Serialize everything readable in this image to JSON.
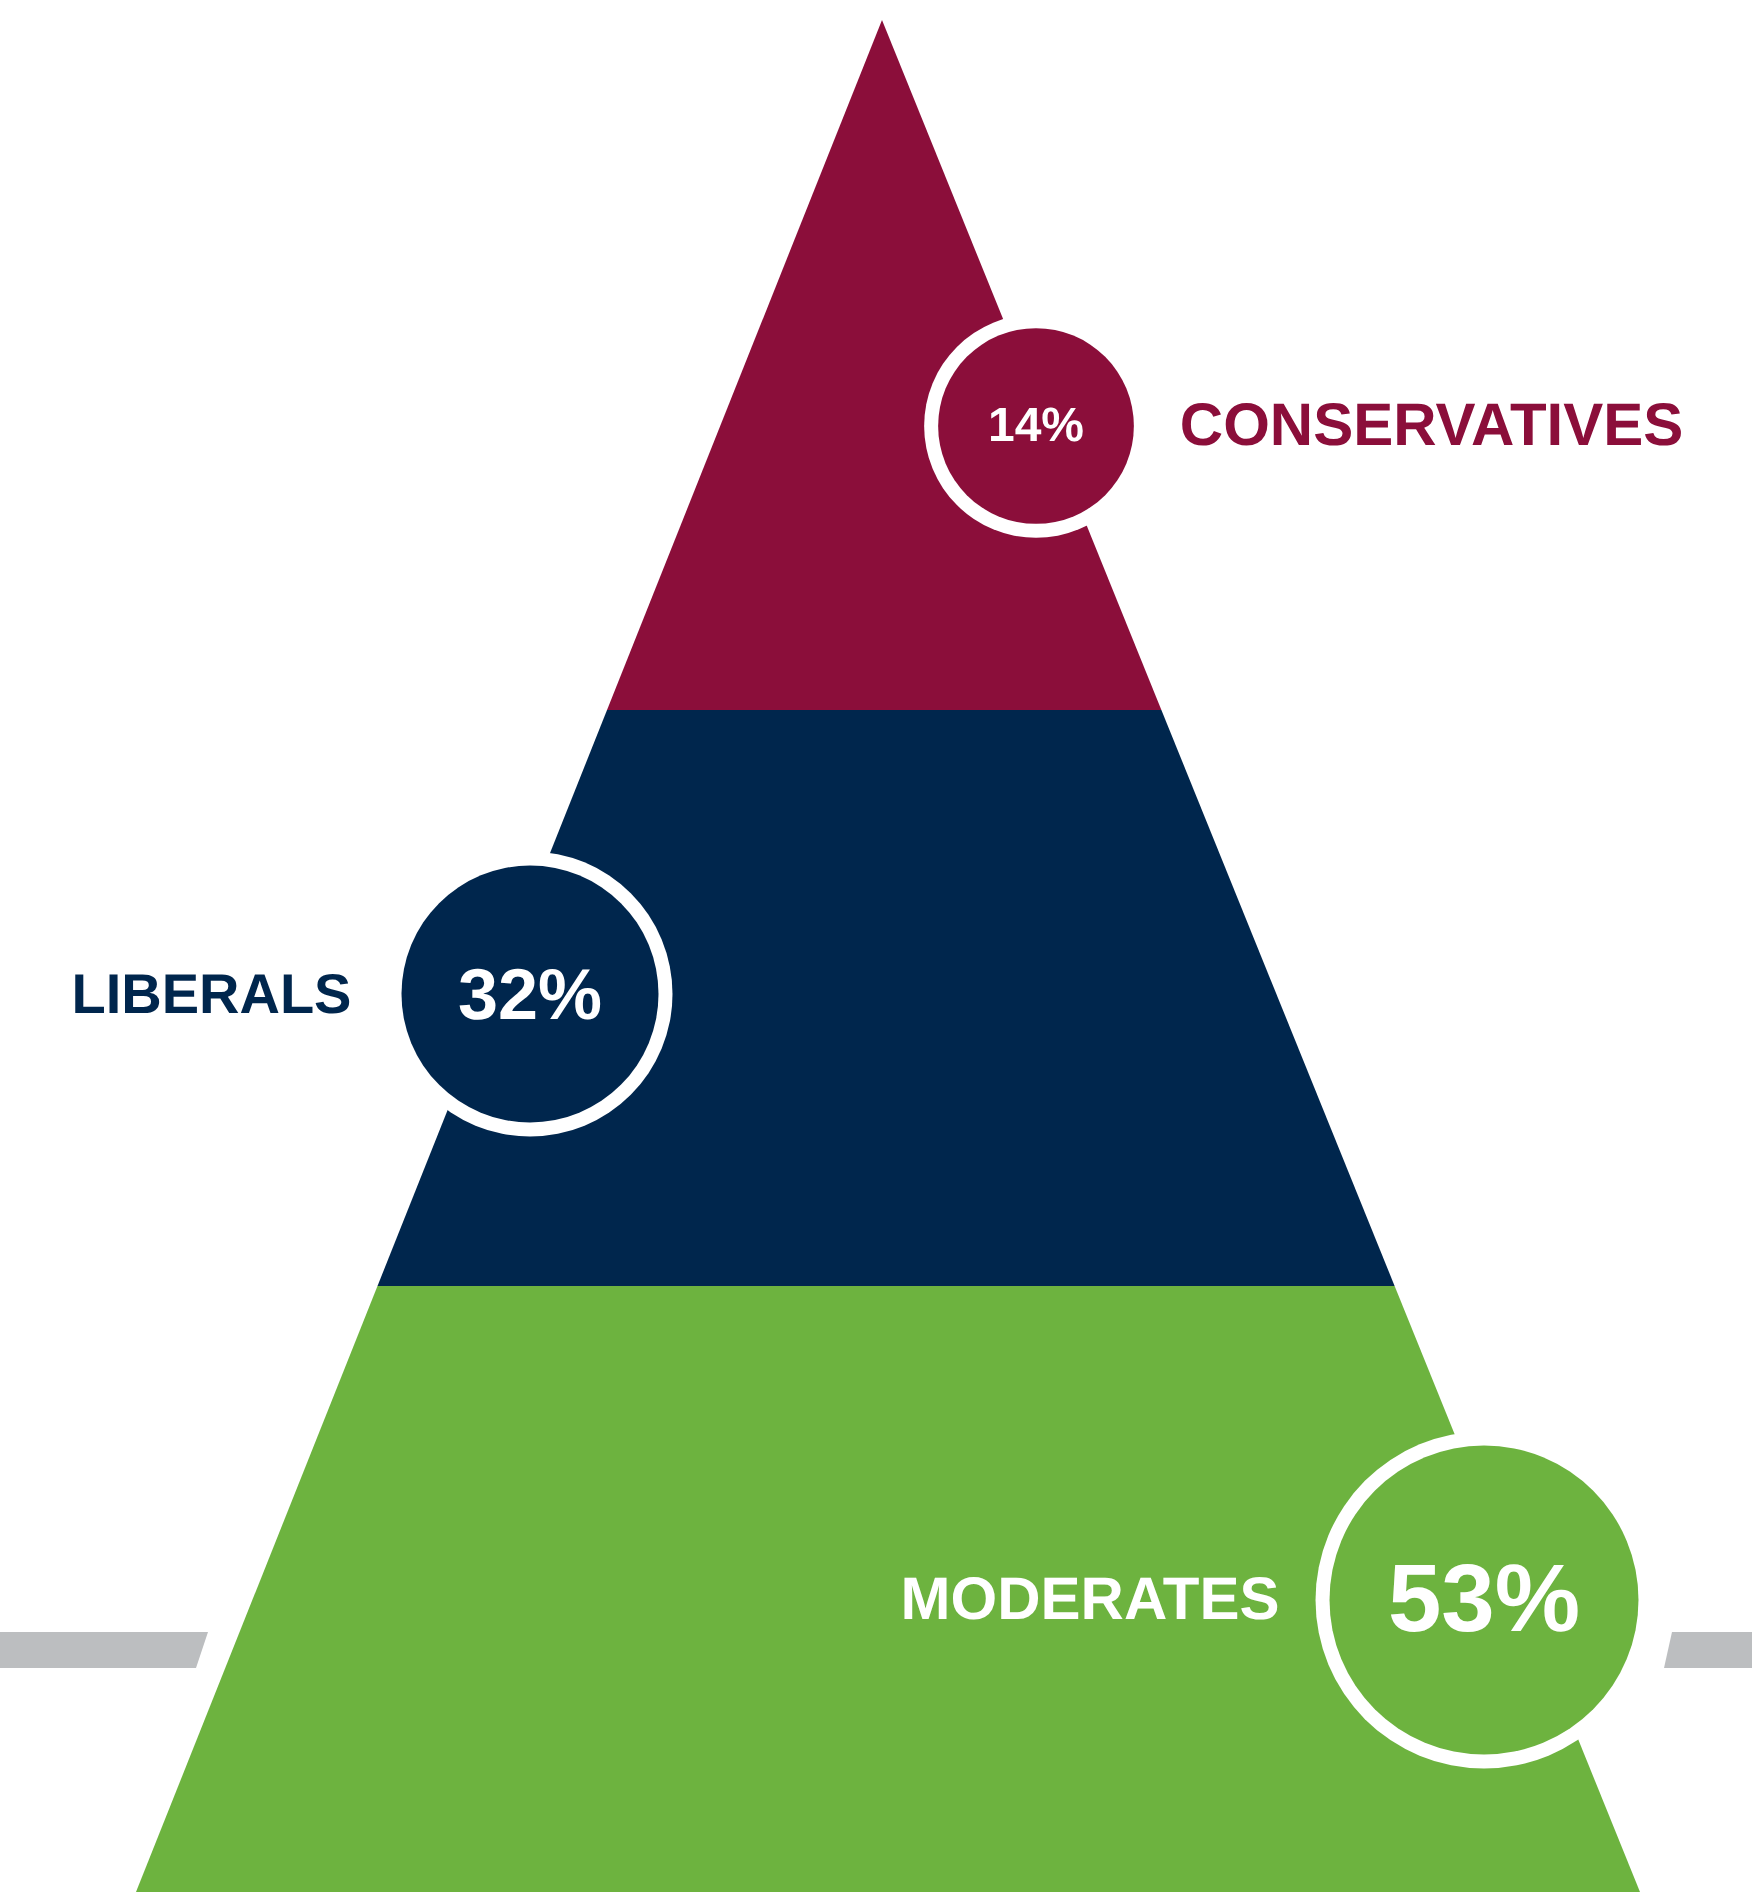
{
  "chart_data": {
    "type": "other",
    "categories": [
      "CONSERVATIVES",
      "LIBERALS",
      "MODERATES"
    ],
    "values": [
      14,
      32,
      53
    ],
    "colors": [
      "#8b0e3a",
      "#00264d",
      "#6db33f"
    ],
    "value_labels": [
      "14%",
      "32%",
      "53%"
    ]
  }
}
